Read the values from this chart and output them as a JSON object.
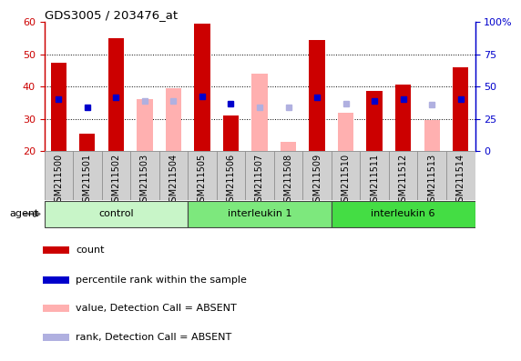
{
  "title": "GDS3005 / 203476_at",
  "samples": [
    "GSM211500",
    "GSM211501",
    "GSM211502",
    "GSM211503",
    "GSM211504",
    "GSM211505",
    "GSM211506",
    "GSM211507",
    "GSM211508",
    "GSM211509",
    "GSM211510",
    "GSM211511",
    "GSM211512",
    "GSM211513",
    "GSM211514"
  ],
  "groups": [
    {
      "name": "control",
      "indices": [
        0,
        1,
        2,
        3,
        4
      ],
      "color": "#c8f5c8"
    },
    {
      "name": "interleukin 1",
      "indices": [
        5,
        6,
        7,
        8,
        9
      ],
      "color": "#7de87d"
    },
    {
      "name": "interleukin 6",
      "indices": [
        10,
        11,
        12,
        13,
        14
      ],
      "color": "#44dd44"
    }
  ],
  "count_values": [
    47.5,
    25.5,
    55.0,
    null,
    null,
    59.5,
    31.0,
    null,
    null,
    54.5,
    null,
    38.5,
    40.5,
    null,
    46.0
  ],
  "rank_values": [
    40.0,
    34.0,
    42.0,
    null,
    null,
    42.5,
    36.5,
    null,
    null,
    41.5,
    null,
    39.0,
    40.0,
    null,
    40.0
  ],
  "absent_count_values": [
    null,
    null,
    null,
    36.0,
    39.5,
    null,
    null,
    44.0,
    23.0,
    null,
    32.0,
    null,
    null,
    29.5,
    null
  ],
  "absent_rank_values": [
    null,
    null,
    null,
    38.5,
    39.0,
    null,
    null,
    34.0,
    34.0,
    null,
    36.5,
    null,
    null,
    36.0,
    null
  ],
  "ylim_left": [
    20,
    60
  ],
  "ylim_right": [
    0,
    100
  ],
  "yticks_left": [
    20,
    30,
    40,
    50,
    60
  ],
  "yticks_right": [
    0,
    25,
    50,
    75,
    100
  ],
  "count_color": "#cc0000",
  "rank_color": "#0000cc",
  "absent_count_color": "#ffb0b0",
  "absent_rank_color": "#b0b0e0",
  "bar_width": 0.55,
  "legend_labels": [
    "count",
    "percentile rank within the sample",
    "value, Detection Call = ABSENT",
    "rank, Detection Call = ABSENT"
  ]
}
